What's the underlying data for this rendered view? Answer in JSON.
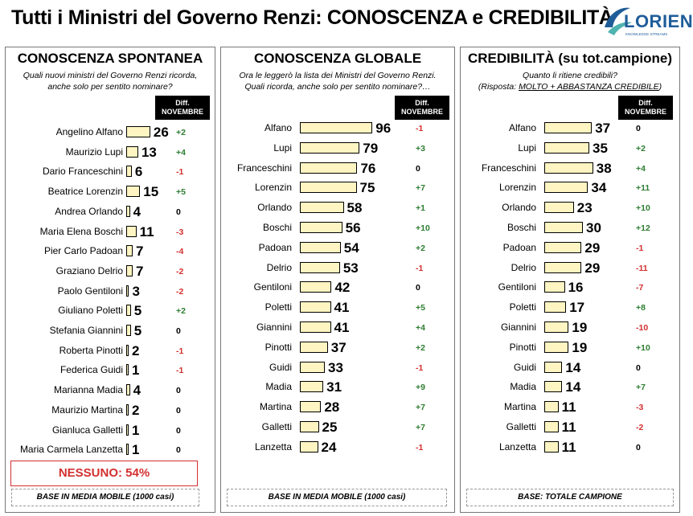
{
  "header": {
    "title": "Tutti i Ministri del Governo Renzi: CONOSCENZA e CREDIBILITÀ",
    "logo_text": "LORIEN",
    "logo_sub": "KNOWLEDGE STREAMS"
  },
  "chart_data": [
    {
      "type": "bar",
      "title": "CONOSCENZA SPONTANEA",
      "question": "Quali nuovi ministri del Governo Renzi ricorda, anche solo per sentito nominare?",
      "diff_header": "Diff. NOVEMBRE",
      "categories": [
        "Angelino Alfano",
        "Maurizio Lupi",
        "Dario Franceschini",
        "Beatrice Lorenzin",
        "Andrea Orlando",
        "Maria Elena Boschi",
        "Pier Carlo Padoan",
        "Graziano Delrio",
        "Paolo Gentiloni",
        "Giuliano Poletti",
        "Stefania Giannini",
        "Roberta Pinotti",
        "Federica Guidi",
        "Marianna Madia",
        "Maurizio Martina",
        "Gianluca Galletti",
        "Maria Carmela Lanzetta"
      ],
      "values": [
        26,
        13,
        6,
        15,
        4,
        11,
        7,
        7,
        3,
        5,
        5,
        2,
        1,
        4,
        2,
        1,
        1
      ],
      "diff": [
        "+2",
        "+4",
        "-1",
        "+5",
        "0",
        "-3",
        "-4",
        "-2",
        "-2",
        "+2",
        "0",
        "-1",
        "-1",
        "0",
        "0",
        "0",
        "0"
      ],
      "note": "NESSUNO: 54%",
      "base": "BASE IN MEDIA MOBILE (1000 casi)"
    },
    {
      "type": "bar",
      "title": "CONOSCENZA GLOBALE",
      "question": "Ora le leggerò la lista dei Ministri del Governo Renzi. Quali ricorda, anche solo per sentito nominare?…",
      "diff_header": "Diff. NOVEMBRE",
      "categories": [
        "Alfano",
        "Lupi",
        "Franceschini",
        "Lorenzin",
        "Orlando",
        "Boschi",
        "Padoan",
        "Delrio",
        "Gentiloni",
        "Poletti",
        "Giannini",
        "Pinotti",
        "Guidi",
        "Madia",
        "Martina",
        "Galletti",
        "Lanzetta"
      ],
      "values": [
        96,
        79,
        76,
        75,
        58,
        56,
        54,
        53,
        42,
        41,
        41,
        37,
        33,
        31,
        28,
        25,
        24
      ],
      "diff": [
        "-1",
        "+3",
        "0",
        "+7",
        "+1",
        "+10",
        "+2",
        "-1",
        "0",
        "+5",
        "+4",
        "+2",
        "-1",
        "+9",
        "+7",
        "+7",
        "-1"
      ],
      "base": "BASE IN MEDIA MOBILE (1000 casi)"
    },
    {
      "type": "bar",
      "title": "CREDIBILITÀ (su tot.campione)",
      "question": "Quanto li ritiene credibili?",
      "question2_prefix": "(Risposta: ",
      "question2_underlined": "MOLTO + ABBASTANZA CREDIBILE",
      "question2_suffix": ")",
      "diff_header": "Diff. NOVEMBRE",
      "categories": [
        "Alfano",
        "Lupi",
        "Franceschini",
        "Lorenzin",
        "Orlando",
        "Boschi",
        "Padoan",
        "Delrio",
        "Gentiloni",
        "Poletti",
        "Giannini",
        "Pinotti",
        "Guidi",
        "Madia",
        "Martina",
        "Galletti",
        "Lanzetta"
      ],
      "values": [
        37,
        35,
        38,
        34,
        23,
        30,
        29,
        29,
        16,
        17,
        19,
        19,
        14,
        14,
        11,
        11,
        11
      ],
      "diff": [
        "0",
        "+2",
        "+4",
        "+11",
        "+10",
        "+12",
        "-1",
        "-11",
        "-7",
        "+8",
        "-10",
        "+10",
        "0",
        "+7",
        "-3",
        "-2",
        "0"
      ],
      "base": "BASE: TOTALE CAMPIONE"
    }
  ]
}
